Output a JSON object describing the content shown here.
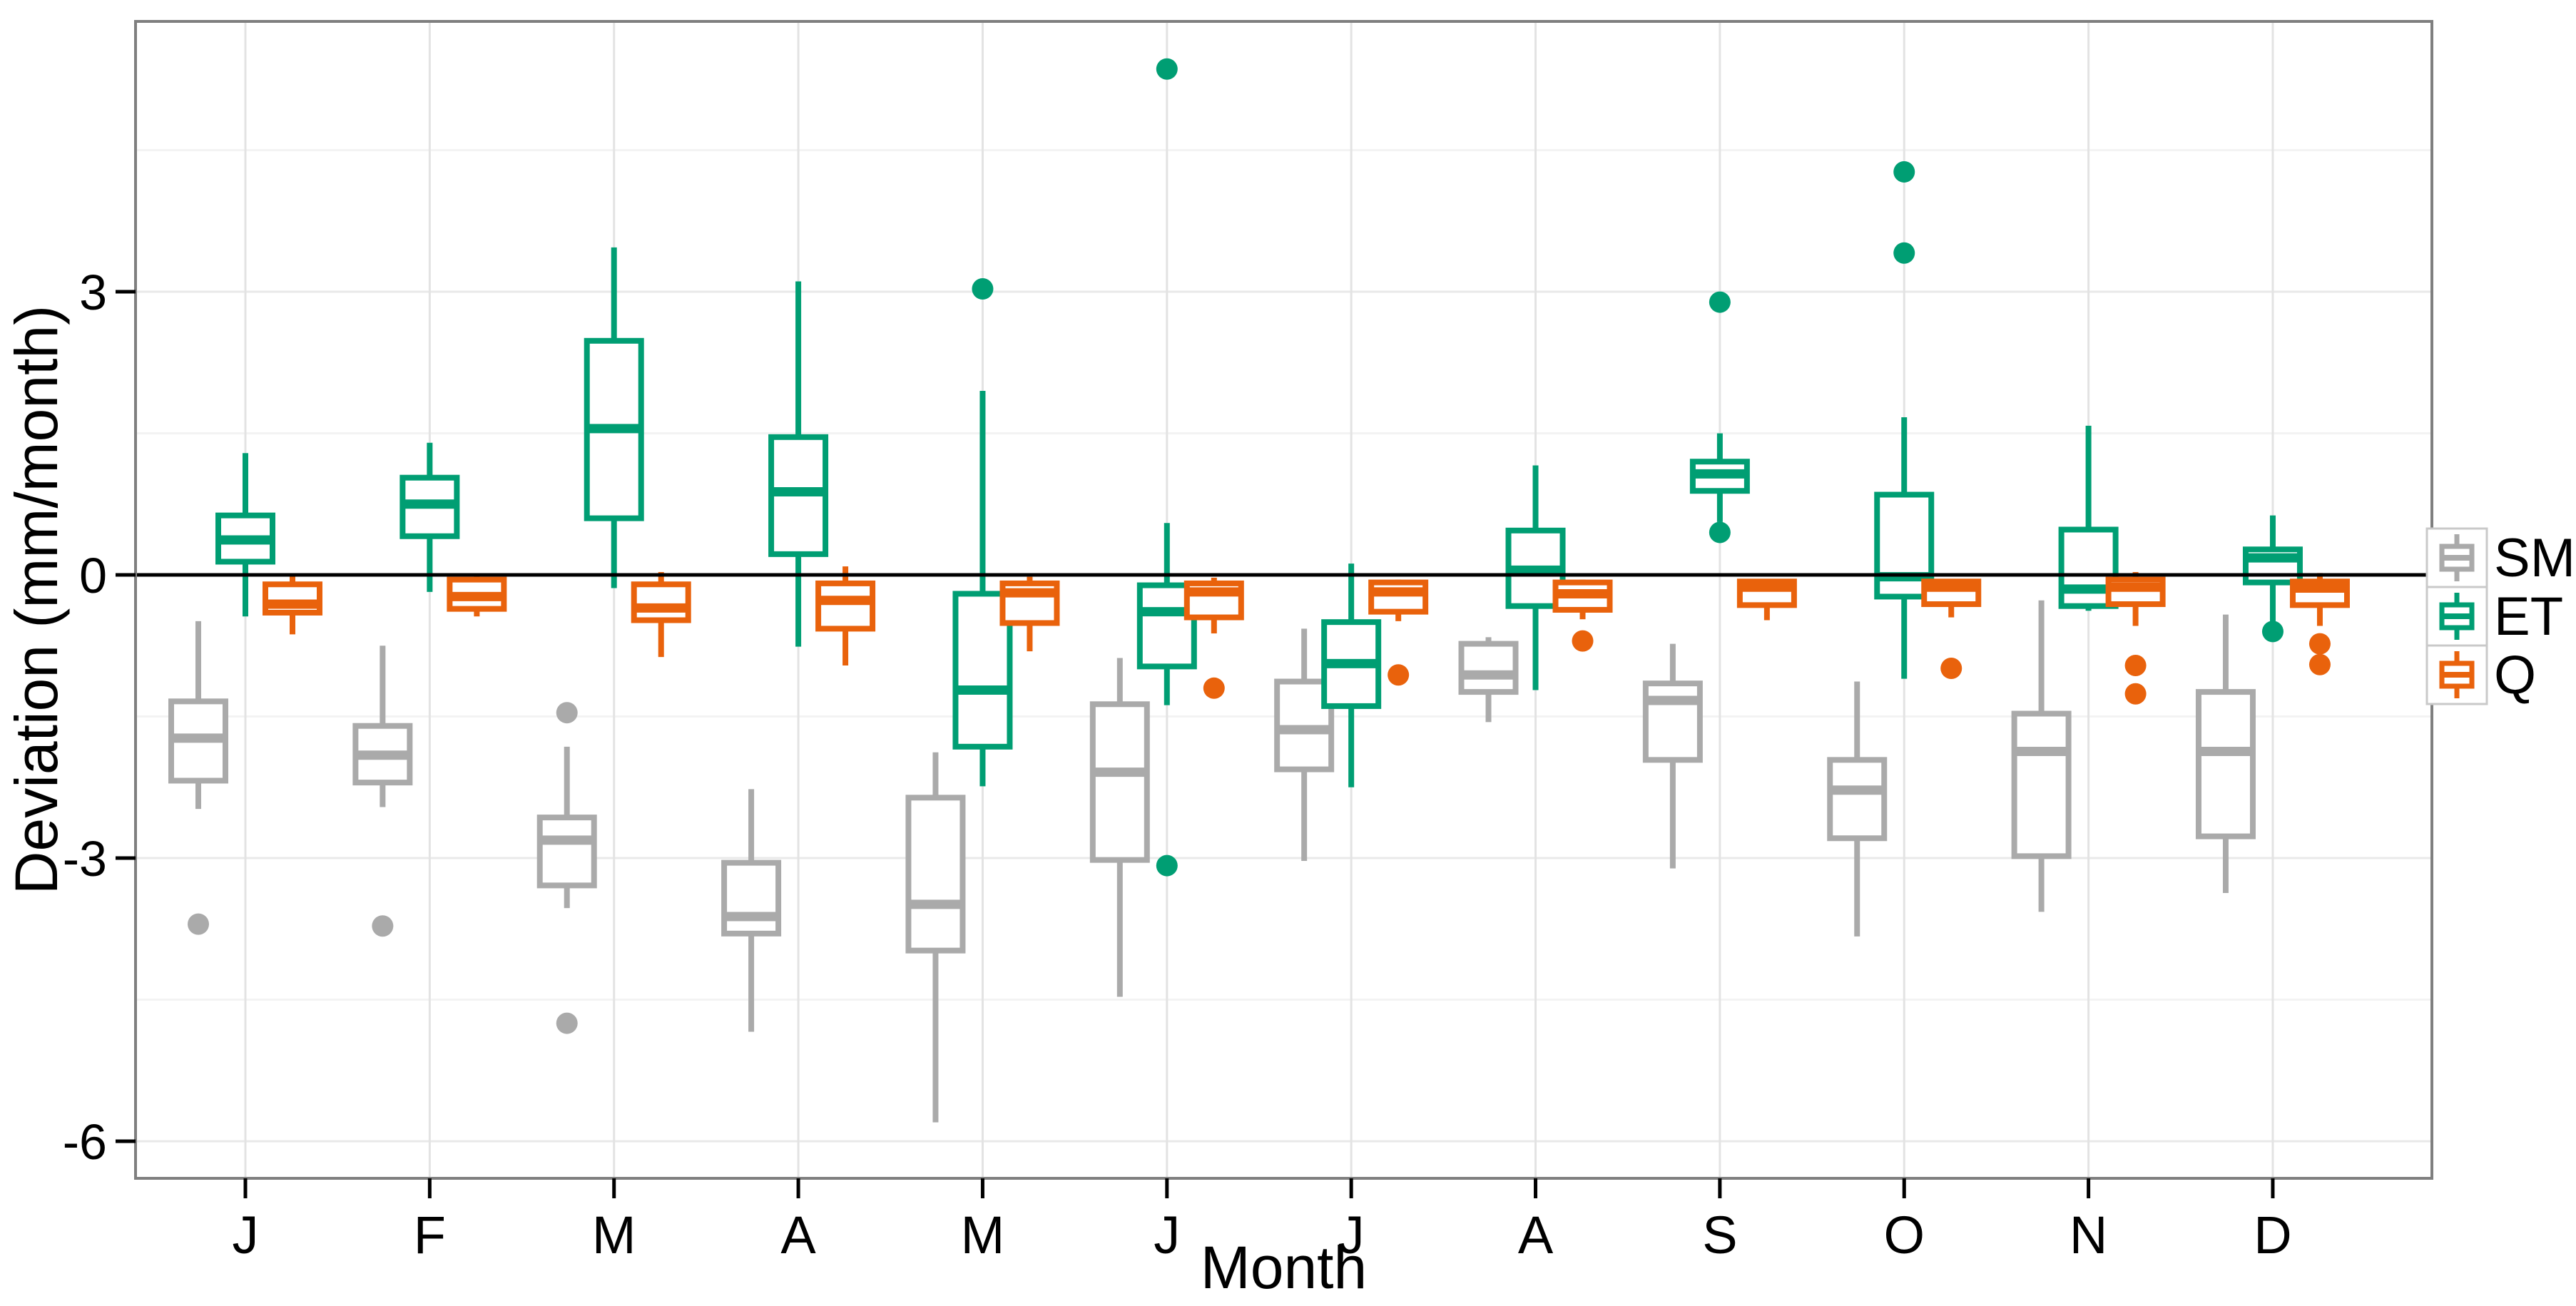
{
  "chart_data": {
    "type": "boxplot",
    "title": "",
    "xlabel": "Month",
    "ylabel": "Deviation (mm/month)",
    "categories": [
      "J",
      "F",
      "M",
      "A",
      "M",
      "J",
      "J",
      "A",
      "S",
      "O",
      "N",
      "D"
    ],
    "y_ticks": [
      3,
      0,
      -3,
      -6
    ],
    "y_minor_gridlines": [
      4.5,
      1.5,
      -1.5,
      -4.5
    ],
    "ylim": [
      -6.4,
      5.87
    ],
    "zero_line": 0,
    "grid": "on",
    "legend_position": "right",
    "panel_border_color": "#7f7f7f",
    "zero_line_color": "#000000",
    "series": [
      {
        "name": "SM",
        "color": "#AAAAAA",
        "boxes": [
          {
            "lo": -2.48,
            "q1": -2.18,
            "med": -1.73,
            "q3": -1.34,
            "hi": -0.49,
            "out": [
              -3.7
            ]
          },
          {
            "lo": -2.46,
            "q1": -2.2,
            "med": -1.91,
            "q3": -1.6,
            "hi": -0.75,
            "out": [
              -3.72
            ]
          },
          {
            "lo": -3.53,
            "q1": -3.29,
            "med": -2.81,
            "q3": -2.57,
            "hi": -1.82,
            "out": [
              -1.46,
              -4.75
            ]
          },
          {
            "lo": -4.84,
            "q1": -3.8,
            "med": -3.62,
            "q3": -3.05,
            "hi": -2.27,
            "out": []
          },
          {
            "lo": -5.8,
            "q1": -3.98,
            "med": -3.49,
            "q3": -2.36,
            "hi": -1.88,
            "out": []
          },
          {
            "lo": -4.47,
            "q1": -3.02,
            "med": -2.09,
            "q3": -1.37,
            "hi": -0.88,
            "out": []
          },
          {
            "lo": -3.03,
            "q1": -2.06,
            "med": -1.64,
            "q3": -1.13,
            "hi": -0.57,
            "out": []
          },
          {
            "lo": -1.56,
            "q1": -1.24,
            "med": -1.06,
            "q3": -0.73,
            "hi": -0.66,
            "out": []
          },
          {
            "lo": -3.11,
            "q1": -1.96,
            "med": -1.33,
            "q3": -1.15,
            "hi": -0.73,
            "out": []
          },
          {
            "lo": -3.83,
            "q1": -2.79,
            "med": -2.28,
            "q3": -1.96,
            "hi": -1.13,
            "out": []
          },
          {
            "lo": -3.57,
            "q1": -2.98,
            "med": -1.87,
            "q3": -1.47,
            "hi": -0.27,
            "out": []
          },
          {
            "lo": -3.37,
            "q1": -2.77,
            "med": -1.87,
            "q3": -1.24,
            "hi": -0.42,
            "out": []
          }
        ]
      },
      {
        "name": "ET",
        "color": "#009E73",
        "boxes": [
          {
            "lo": -0.44,
            "q1": 0.14,
            "med": 0.37,
            "q3": 0.63,
            "hi": 1.29,
            "out": []
          },
          {
            "lo": -0.18,
            "q1": 0.41,
            "med": 0.75,
            "q3": 1.03,
            "hi": 1.4,
            "out": []
          },
          {
            "lo": -0.14,
            "q1": 0.6,
            "med": 1.55,
            "q3": 2.48,
            "hi": 3.47,
            "out": []
          },
          {
            "lo": -0.76,
            "q1": 0.22,
            "med": 0.88,
            "q3": 1.46,
            "hi": 3.11,
            "out": []
          },
          {
            "lo": -2.24,
            "q1": -1.82,
            "med": -1.22,
            "q3": -0.2,
            "hi": 1.95,
            "out": [
              3.03
            ]
          },
          {
            "lo": -1.38,
            "q1": -0.97,
            "med": -0.39,
            "q3": -0.11,
            "hi": 0.55,
            "out": [
              5.36,
              -3.08
            ]
          },
          {
            "lo": -2.25,
            "q1": -1.39,
            "med": -0.94,
            "q3": -0.5,
            "hi": 0.12,
            "out": []
          },
          {
            "lo": -1.22,
            "q1": -0.33,
            "med": 0.05,
            "q3": 0.47,
            "hi": 1.16,
            "out": []
          },
          {
            "lo": 0.56,
            "q1": 0.89,
            "med": 1.07,
            "q3": 1.2,
            "hi": 1.5,
            "out": [
              2.89,
              0.45
            ]
          },
          {
            "lo": -1.1,
            "q1": -0.23,
            "med": -0.02,
            "q3": 0.85,
            "hi": 1.67,
            "out": [
              4.27,
              3.41
            ]
          },
          {
            "lo": -0.38,
            "q1": -0.33,
            "med": -0.15,
            "q3": 0.48,
            "hi": 1.58,
            "out": []
          },
          {
            "lo": -0.51,
            "q1": -0.08,
            "med": 0.18,
            "q3": 0.27,
            "hi": 0.63,
            "out": [
              -0.6
            ]
          }
        ]
      },
      {
        "name": "Q",
        "color": "#E9620C",
        "boxes": [
          {
            "lo": -0.63,
            "q1": -0.4,
            "med": -0.31,
            "q3": -0.1,
            "hi": 0.0,
            "out": []
          },
          {
            "lo": -0.44,
            "q1": -0.36,
            "med": -0.23,
            "q3": -0.05,
            "hi": 0.0,
            "out": []
          },
          {
            "lo": -0.87,
            "q1": -0.48,
            "med": -0.35,
            "q3": -0.1,
            "hi": 0.03,
            "out": []
          },
          {
            "lo": -0.96,
            "q1": -0.57,
            "med": -0.27,
            "q3": -0.09,
            "hi": 0.09,
            "out": []
          },
          {
            "lo": -0.81,
            "q1": -0.51,
            "med": -0.19,
            "q3": -0.09,
            "hi": -0.02,
            "out": []
          },
          {
            "lo": -0.62,
            "q1": -0.45,
            "med": -0.18,
            "q3": -0.09,
            "hi": -0.03,
            "out": [
              -1.2
            ]
          },
          {
            "lo": -0.49,
            "q1": -0.39,
            "med": -0.18,
            "q3": -0.08,
            "hi": -0.05,
            "out": [
              -1.06
            ]
          },
          {
            "lo": -0.47,
            "q1": -0.37,
            "med": -0.2,
            "q3": -0.08,
            "hi": -0.05,
            "out": [
              -0.7
            ]
          },
          {
            "lo": -0.48,
            "q1": -0.32,
            "med": -0.13,
            "q3": -0.07,
            "hi": -0.05,
            "out": []
          },
          {
            "lo": -0.45,
            "q1": -0.31,
            "med": -0.13,
            "q3": -0.07,
            "hi": -0.05,
            "out": [
              -0.99
            ]
          },
          {
            "lo": -0.54,
            "q1": -0.31,
            "med": -0.13,
            "q3": -0.05,
            "hi": 0.03,
            "out": [
              -0.96,
              -1.26
            ]
          },
          {
            "lo": -0.54,
            "q1": -0.32,
            "med": -0.14,
            "q3": -0.07,
            "hi": 0.02,
            "out": [
              -0.73,
              -0.95
            ]
          }
        ]
      }
    ],
    "legend": [
      {
        "label": "SM",
        "color": "#AAAAAA"
      },
      {
        "label": "ET",
        "color": "#009E73"
      },
      {
        "label": "Q",
        "color": "#E9620C"
      }
    ]
  }
}
